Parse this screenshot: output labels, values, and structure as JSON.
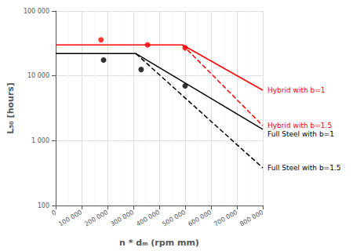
{
  "chart_data": {
    "type": "line",
    "log": "y",
    "xlabel": "n * dₘ (rpm mm)",
    "ylabel": "L₅₀ [hours]",
    "xlim": [
      0,
      800000
    ],
    "ylim": [
      100,
      100000
    ],
    "xticks": [
      0,
      {
        "value": 100000,
        "label": "100 000"
      },
      {
        "value": 200000,
        "label": "200 000"
      },
      {
        "value": 300000,
        "label": "300 000"
      },
      {
        "value": 400000,
        "label": "400 000"
      },
      {
        "value": 500000,
        "label": "500 000"
      },
      {
        "value": 600000,
        "label": "600 000"
      },
      {
        "value": 700000,
        "label": "700 000"
      },
      {
        "value": 800000,
        "label": "800 000"
      }
    ],
    "yticks": [
      100,
      {
        "value": 1000,
        "label": "1 000"
      },
      {
        "value": 10000,
        "label": "10 000"
      },
      {
        "value": 100000,
        "label": "100 000"
      }
    ],
    "grid": true,
    "series": [
      {
        "type": "line",
        "color": "#ff0000",
        "line_style": "solid",
        "x": [
          0,
          490000,
          800000
        ],
        "values": [
          30000,
          30000,
          6000
        ]
      },
      {
        "type": "line",
        "color": "#ff0000",
        "line_style": "dashed",
        "x": [
          490000,
          800000
        ],
        "values": [
          30000,
          1700
        ]
      },
      {
        "type": "line",
        "color": "#000000",
        "line_style": "solid",
        "x": [
          0,
          310000,
          800000
        ],
        "values": [
          22000,
          22000,
          1500
        ]
      },
      {
        "type": "line",
        "color": "#000000",
        "line_style": "dashed",
        "x": [
          310000,
          800000
        ],
        "values": [
          22000,
          380
        ]
      },
      {
        "type": "scatter",
        "color": "#ff0000",
        "marker": "circle",
        "x": [
          175000,
          355000,
          500000
        ],
        "values": [
          36000,
          30000,
          27000
        ]
      },
      {
        "type": "scatter",
        "color": "#000000",
        "marker": "circle",
        "x": [
          185000,
          330000,
          500000
        ],
        "values": [
          17500,
          12500,
          7000
        ]
      }
    ],
    "annotations": [
      {
        "text": "Hybrid with b=1",
        "x": 800000,
        "y": 6000,
        "color": "#ff0000"
      },
      {
        "text": "Hybrid with b=1.5",
        "x": 800000,
        "y": 1700,
        "color": "#ff0000"
      },
      {
        "text": "Full Steel with b=1",
        "x": 800000,
        "y": 1500,
        "color": "#000000"
      },
      {
        "text": "Full Steel with b=1.5",
        "x": 800000,
        "y": 380,
        "color": "#000000"
      }
    ]
  }
}
